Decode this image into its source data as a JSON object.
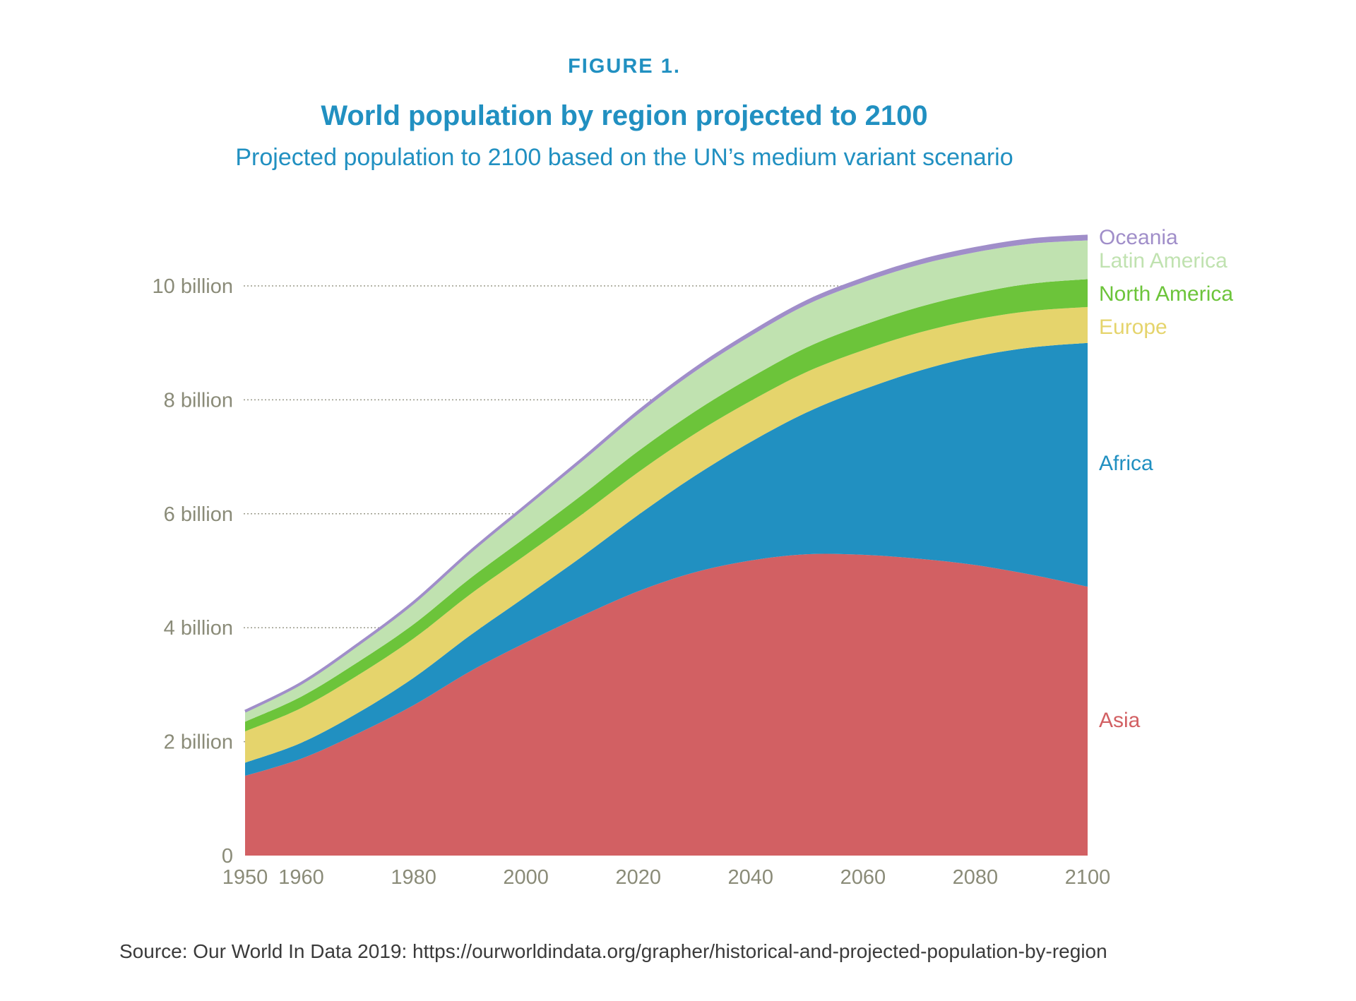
{
  "figure_label": "FIGURE 1.",
  "title": "World population by region projected to 2100",
  "subtitle": "Projected population to 2100 based on the UN’s medium variant scenario",
  "source": "Source: Our World In Data 2019: https://ourworldindata.org/grapher/historical-and-projected-population-by-region",
  "chart_data": {
    "type": "area",
    "stacked": true,
    "title": "World population by region projected to 2100",
    "subtitle": "Projected population to 2100 based on the UN’s medium variant scenario",
    "unit": "billion",
    "x": [
      1950,
      1960,
      1970,
      1980,
      1990,
      2000,
      2010,
      2020,
      2030,
      2040,
      2050,
      2060,
      2070,
      2080,
      2090,
      2100
    ],
    "x_ticks": [
      "1950",
      "1960",
      "1980",
      "2000",
      "2020",
      "2040",
      "2060",
      "2080",
      "2100"
    ],
    "x_tick_values": [
      1950,
      1960,
      1980,
      2000,
      2020,
      2040,
      2060,
      2080,
      2100
    ],
    "y_ticks": [
      "0",
      "2 billion",
      "4 billion",
      "6 billion",
      "8 billion",
      "10 billion"
    ],
    "y_tick_values": [
      0,
      2,
      4,
      6,
      8,
      10
    ],
    "ylim": [
      0,
      11
    ],
    "grid": "horizontal dotted",
    "legend": "right (inline labels)",
    "series": [
      {
        "name": "Asia",
        "color": "#d26063",
        "values": [
          1.4,
          1.7,
          2.14,
          2.64,
          3.23,
          3.74,
          4.21,
          4.64,
          4.97,
          5.18,
          5.29,
          5.28,
          5.21,
          5.1,
          4.93,
          4.72
        ]
      },
      {
        "name": "Africa",
        "color": "#2190c1",
        "values": [
          0.23,
          0.28,
          0.36,
          0.48,
          0.63,
          0.81,
          1.04,
          1.34,
          1.69,
          2.08,
          2.49,
          2.9,
          3.3,
          3.66,
          3.99,
          4.28
        ]
      },
      {
        "name": "Europe",
        "color": "#e5d46c",
        "values": [
          0.55,
          0.61,
          0.66,
          0.69,
          0.72,
          0.73,
          0.74,
          0.75,
          0.74,
          0.72,
          0.71,
          0.69,
          0.67,
          0.65,
          0.64,
          0.63
        ]
      },
      {
        "name": "North America",
        "color": "#6cc43a",
        "values": [
          0.17,
          0.2,
          0.23,
          0.25,
          0.28,
          0.31,
          0.34,
          0.37,
          0.39,
          0.41,
          0.43,
          0.44,
          0.45,
          0.46,
          0.48,
          0.49
        ]
      },
      {
        "name": "Latin America",
        "color": "#c0e2b0",
        "values": [
          0.17,
          0.22,
          0.29,
          0.36,
          0.44,
          0.52,
          0.59,
          0.65,
          0.7,
          0.73,
          0.75,
          0.75,
          0.74,
          0.72,
          0.7,
          0.68
        ]
      },
      {
        "name": "Oceania",
        "color": "#a08ec9",
        "values": [
          0.013,
          0.016,
          0.02,
          0.023,
          0.027,
          0.031,
          0.037,
          0.043,
          0.048,
          0.053,
          0.057,
          0.061,
          0.065,
          0.068,
          0.072,
          0.075
        ]
      }
    ],
    "axis_text_color": "#8a8b78",
    "title_color": "#2190c1"
  }
}
